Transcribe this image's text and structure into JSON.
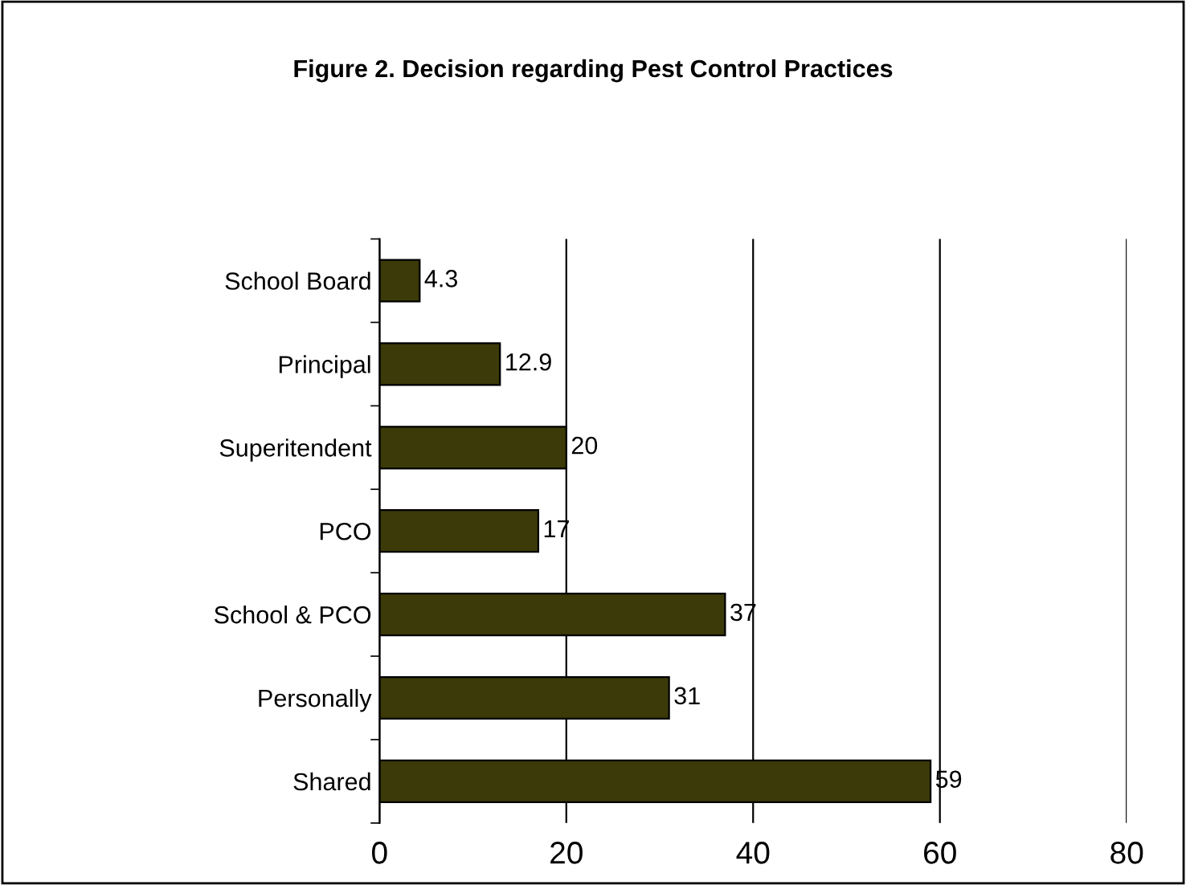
{
  "chart_data": {
    "type": "bar",
    "orientation": "horizontal",
    "title": "Figure 2. Decision regarding Pest Control Practices",
    "categories": [
      "School Board",
      "Principal",
      "Superitendent",
      "PCO",
      "School & PCO",
      "Personally",
      "Shared"
    ],
    "values": [
      4.3,
      12.9,
      20,
      17,
      37,
      31,
      59
    ],
    "color": "#3b3a08",
    "xlim": [
      0,
      80
    ],
    "xticks": [
      0,
      20,
      40,
      60,
      80
    ],
    "grid": "x",
    "data_labels": true,
    "legend": false
  }
}
